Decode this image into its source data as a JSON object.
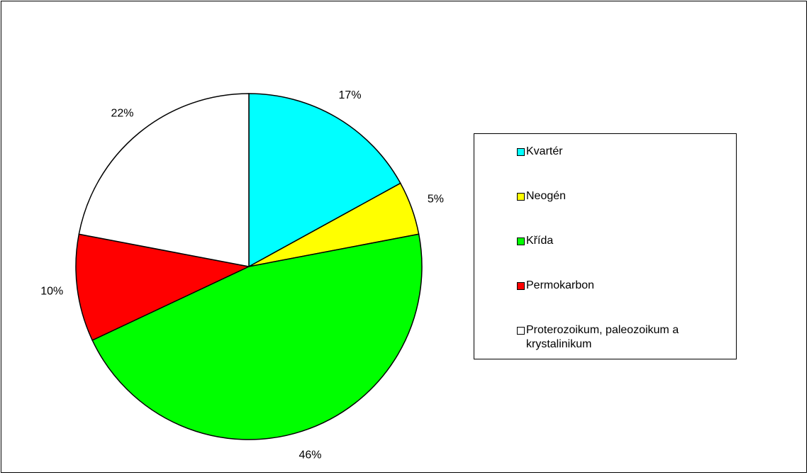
{
  "chart_data": {
    "type": "pie",
    "categories": [
      "Kvartér",
      "Neogén",
      "Křída",
      "Permokarbon",
      "Proterozoikum, paleozoikum a krystalinikum"
    ],
    "values": [
      17,
      5,
      46,
      10,
      22
    ],
    "value_labels": [
      "17%",
      "5%",
      "46%",
      "10%",
      "22%"
    ],
    "colors": [
      "#00ffff",
      "#ffff00",
      "#00ff00",
      "#ff0000",
      "#ffffff"
    ],
    "legend": "right"
  }
}
